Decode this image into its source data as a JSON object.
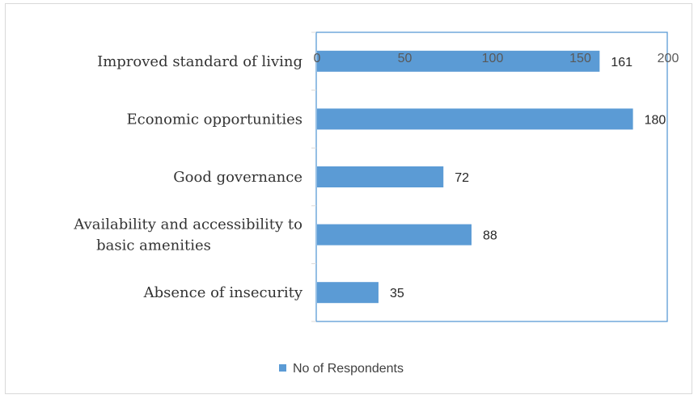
{
  "chart_data": {
    "type": "bar",
    "orientation": "horizontal",
    "categories": [
      "Improved standard of living",
      "Economic  opportunities",
      "Good governance",
      "Availability  and accessibility to basic amenities",
      "Absence of insecurity"
    ],
    "category_lines": [
      [
        "Improved standard of living"
      ],
      [
        "Economic  opportunities"
      ],
      [
        "Good governance"
      ],
      [
        "Availability  and accessibility to",
        "basic amenities"
      ],
      [
        "Absence of insecurity"
      ]
    ],
    "series": [
      {
        "name": "No of Respondents",
        "values": [
          161,
          180,
          72,
          88,
          35
        ],
        "color": "#5b9bd5"
      }
    ],
    "xticks": [
      0,
      50,
      100,
      150,
      200
    ],
    "xlim": [
      0,
      200
    ],
    "xlabel": "",
    "ylabel": "",
    "grid": false,
    "legend_position": "bottom",
    "axis_color": "#5b9bd5"
  }
}
